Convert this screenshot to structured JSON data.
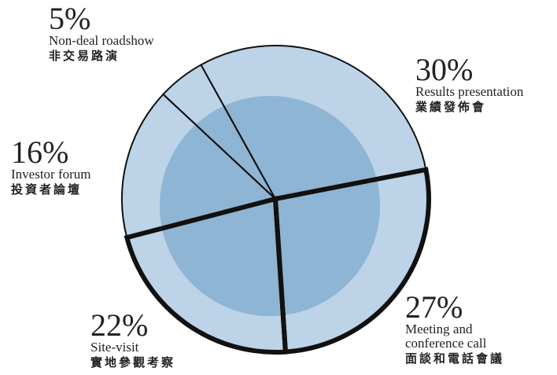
{
  "chart_data": {
    "type": "pie",
    "categories": [
      "Results presentation",
      "Meeting and conference call",
      "Site-visit",
      "Investor forum",
      "Non-deal roadshow"
    ],
    "categories_zh": [
      "業績發佈會",
      "面談和電話會議",
      "實地參觀考察",
      "投資者論壇",
      "非交易路演"
    ],
    "values": [
      30,
      27,
      22,
      16,
      5
    ],
    "value_labels": [
      "30%",
      "27%",
      "22%",
      "16%",
      "5%"
    ],
    "color": "#bdd4e8",
    "stroke_widths": [
      2,
      6,
      6,
      2,
      2
    ]
  }
}
